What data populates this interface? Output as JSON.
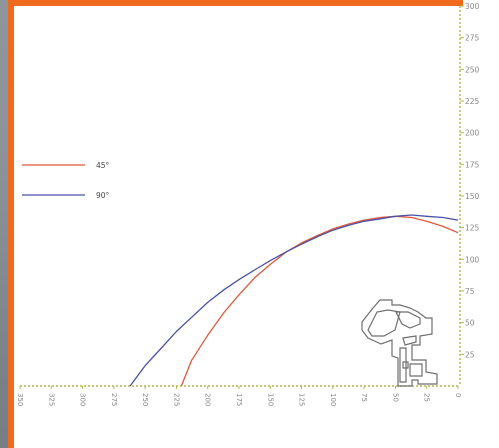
{
  "chart_data": {
    "type": "line",
    "title": "",
    "xlabel": "",
    "ylabel": "",
    "xlim": [
      350,
      0
    ],
    "ylim": [
      0,
      300
    ],
    "x_ticks": [
      "350",
      "325",
      "300",
      "275",
      "250",
      "225",
      "200",
      "175",
      "150",
      "125",
      "100",
      "75",
      "50",
      "25",
      "0"
    ],
    "y_ticks": [
      "25",
      "50",
      "75",
      "100",
      "125",
      "150",
      "175",
      "200",
      "225",
      "250",
      "275",
      "300"
    ],
    "grid": false,
    "legend_position": "left",
    "series": [
      {
        "name": "45°",
        "color": "#e0573e",
        "x": [
          221,
          213,
          200,
          187,
          175,
          162,
          150,
          137,
          125,
          112,
          100,
          87,
          75,
          62,
          50,
          37,
          25,
          12,
          0
        ],
        "y": [
          0,
          20,
          40,
          58,
          72,
          86,
          96,
          106,
          113,
          119,
          124,
          128,
          131,
          133,
          134,
          133,
          130,
          126,
          121
        ]
      },
      {
        "name": "90°",
        "color": "#4a52a8",
        "x": [
          262,
          250,
          237,
          225,
          212,
          200,
          187,
          175,
          162,
          150,
          137,
          125,
          112,
          100,
          87,
          75,
          62,
          50,
          37,
          25,
          12,
          0
        ],
        "y": [
          0,
          16,
          30,
          43,
          55,
          66,
          76,
          84,
          92,
          99,
          106,
          112,
          118,
          123,
          127,
          130,
          132,
          134,
          135,
          134,
          133,
          131
        ]
      }
    ]
  },
  "colors": {
    "frame_accent": "#f06a1e",
    "plot_background": "#ffffff",
    "axis": "#b5b54a",
    "profile_outline": "#6e6e6e"
  },
  "icons": {
    "profile": "window-frame-profile-icon"
  }
}
